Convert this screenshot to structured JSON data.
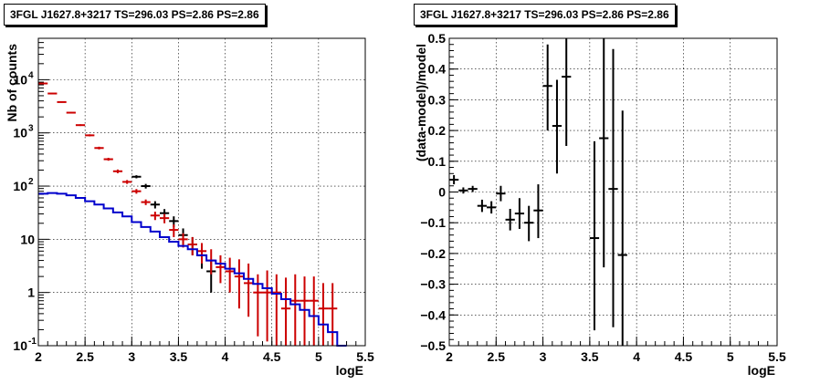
{
  "chart_data": [
    {
      "type": "scatter",
      "title": "3FGL J1627.8+3217 TS=296.03 PS=2.86 PS=2.86",
      "xlabel": "logE",
      "ylabel": "Nb of counts",
      "xlim": [
        2,
        5.5
      ],
      "ylim": [
        0.1,
        60000
      ],
      "yscale": "log",
      "grid": true,
      "xticks": [
        "2",
        "2.5",
        "3",
        "3.5",
        "4",
        "4.5",
        "5",
        "5.5"
      ],
      "yticks": [
        {
          "value": 0.1,
          "label": "10",
          "exp": "-1"
        },
        {
          "value": 1,
          "label": "1",
          "exp": ""
        },
        {
          "value": 10,
          "label": "10",
          "exp": ""
        },
        {
          "value": 100,
          "label": "10",
          "exp": "2"
        },
        {
          "value": 1000,
          "label": "10",
          "exp": "3"
        },
        {
          "value": 10000,
          "label": "10",
          "exp": "4"
        }
      ],
      "series": [
        {
          "color": "#000000",
          "x": [
            3.05,
            3.15,
            3.25,
            3.35,
            3.45,
            3.55,
            3.65,
            3.75,
            3.85
          ],
          "y": [
            150,
            100,
            45,
            31,
            22,
            12,
            8,
            5,
            2.5
          ],
          "ylow": [
            140,
            90,
            38,
            25,
            17,
            8,
            5,
            2.8,
            1
          ],
          "yhigh": [
            160,
            110,
            52,
            37,
            27,
            16,
            11,
            7,
            4
          ]
        },
        {
          "color": "#cc0000",
          "x": [
            2.05,
            2.15,
            2.25,
            2.35,
            2.45,
            2.55,
            2.65,
            2.75,
            2.85,
            2.95,
            3.05,
            3.15,
            3.25,
            3.35,
            3.45,
            3.55,
            3.65,
            3.75,
            3.85,
            3.95,
            4.05,
            4.15,
            4.25,
            4.35,
            4.45,
            4.55,
            4.65,
            4.75,
            4.85,
            4.95,
            5.05,
            5.15
          ],
          "y": [
            8500,
            5500,
            3800,
            2400,
            1400,
            900,
            520,
            320,
            190,
            120,
            80,
            50,
            28,
            25,
            15,
            10,
            8,
            6,
            4,
            3,
            2.5,
            2,
            1.5,
            1,
            1,
            1,
            0.5,
            0.7,
            0.7,
            0.7,
            0.5,
            0.5
          ],
          "ylow": [
            8300,
            5350,
            3700,
            2330,
            1350,
            860,
            490,
            300,
            175,
            110,
            72,
            44,
            23,
            20,
            11,
            7,
            5,
            3.5,
            2.2,
            1.5,
            1,
            0.5,
            0.35,
            0.15,
            0.12,
            0.1,
            0.1,
            0.1,
            0.1,
            0.1,
            0.1,
            0.1
          ],
          "yhigh": [
            8700,
            5650,
            3900,
            2470,
            1450,
            940,
            550,
            340,
            205,
            130,
            88,
            56,
            33,
            30,
            19,
            13,
            11,
            8.5,
            6.5,
            5,
            4.5,
            4.2,
            3.5,
            2.2,
            2.6,
            2.2,
            1.9,
            2.2,
            2.0,
            2.0,
            1.5,
            1.5
          ]
        },
        {
          "color": "#0000cc",
          "step": true,
          "edges": [
            2.0,
            2.1,
            2.2,
            2.3,
            2.4,
            2.5,
            2.6,
            2.7,
            2.8,
            2.9,
            3.0,
            3.1,
            3.2,
            3.3,
            3.4,
            3.5,
            3.6,
            3.7,
            3.8,
            3.9,
            4.0,
            4.1,
            4.2,
            4.3,
            4.4,
            4.5,
            4.6,
            4.7,
            4.8,
            4.9,
            5.0,
            5.1,
            5.2,
            5.3
          ],
          "y": [
            72,
            74,
            72,
            67,
            60,
            52,
            45,
            38,
            32,
            27,
            21,
            17,
            14,
            11,
            9,
            7.5,
            6.5,
            5,
            4,
            3.5,
            2.8,
            2.3,
            1.8,
            1.45,
            1.2,
            0.95,
            0.75,
            0.6,
            0.47,
            0.36,
            0.25,
            0.18,
            0.1
          ]
        }
      ]
    },
    {
      "type": "scatter",
      "title": "3FGL J1627.8+3217 TS=296.03 PS=2.86 PS=2.86",
      "xlabel": "logE",
      "ylabel": "(data-model)/model",
      "xlim": [
        2,
        5.5
      ],
      "ylim": [
        -0.5,
        0.5
      ],
      "grid": true,
      "xticks": [
        "2",
        "2.5",
        "3",
        "3.5",
        "4",
        "4.5",
        "5",
        "5.5"
      ],
      "yticks": [
        "−0.5",
        "−0.4",
        "−0.3",
        "−0.2",
        "−0.1",
        "0",
        "0.1",
        "0.2",
        "0.3",
        "0.4",
        "0.5"
      ],
      "series": [
        {
          "color": "#000000",
          "x": [
            2.05,
            2.15,
            2.25,
            2.35,
            2.45,
            2.55,
            2.65,
            2.75,
            2.85,
            2.95,
            3.05,
            3.15,
            3.25,
            3.55,
            3.65,
            3.75,
            3.85
          ],
          "y": [
            0.04,
            0.005,
            0.01,
            -0.045,
            -0.05,
            -0.005,
            -0.09,
            -0.07,
            -0.1,
            -0.06,
            0.345,
            0.215,
            0.375,
            -0.15,
            0.175,
            0.01,
            -0.205
          ],
          "ylow": [
            0.025,
            -0.005,
            0.0,
            -0.065,
            -0.07,
            -0.03,
            -0.125,
            -0.12,
            -0.16,
            -0.15,
            0.2,
            0.06,
            0.15,
            -0.45,
            -0.245,
            -0.44,
            -0.5
          ],
          "yhigh": [
            0.055,
            0.015,
            0.02,
            -0.025,
            -0.03,
            0.02,
            -0.055,
            -0.02,
            -0.045,
            0.025,
            0.48,
            0.365,
            0.5,
            0.165,
            0.5,
            0.465,
            0.265
          ]
        }
      ]
    }
  ]
}
